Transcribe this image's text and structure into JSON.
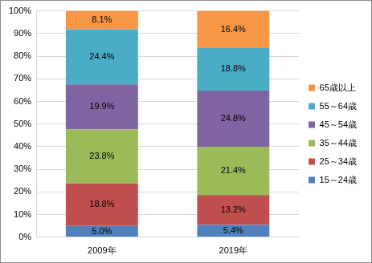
{
  "chart_data": {
    "type": "bar",
    "stacked": true,
    "categories": [
      "2009年",
      "2019年"
    ],
    "series": [
      {
        "name": "15～24歳",
        "color": "#4f81bd",
        "values": [
          5.0,
          5.4
        ],
        "value_labels": [
          "5.0%",
          "5.4%"
        ]
      },
      {
        "name": "25～34歳",
        "color": "#c0504d",
        "values": [
          18.8,
          13.2
        ],
        "value_labels": [
          "18.8%",
          "13.2%"
        ]
      },
      {
        "name": "35～44歳",
        "color": "#9bbb59",
        "values": [
          23.8,
          21.4
        ],
        "value_labels": [
          "23.8%",
          "21.4%"
        ]
      },
      {
        "name": "45～54歳",
        "color": "#8064a2",
        "values": [
          19.9,
          24.8
        ],
        "value_labels": [
          "19.9%",
          "24.8%"
        ]
      },
      {
        "name": "55～64歳",
        "color": "#4bacc6",
        "values": [
          24.4,
          18.8
        ],
        "value_labels": [
          "24.4%",
          "18.8%"
        ]
      },
      {
        "name": "65歳以上",
        "color": "#f79646",
        "values": [
          8.1,
          16.4
        ],
        "value_labels": [
          "8.1%",
          "16.4%"
        ]
      }
    ],
    "ylim": [
      0,
      100
    ],
    "yticks": [
      {
        "value": 0,
        "label": "0%"
      },
      {
        "value": 10,
        "label": "10%"
      },
      {
        "value": 20,
        "label": "20%"
      },
      {
        "value": 30,
        "label": "30%"
      },
      {
        "value": 40,
        "label": "40%"
      },
      {
        "value": 50,
        "label": "50%"
      },
      {
        "value": 60,
        "label": "60%"
      },
      {
        "value": 70,
        "label": "70%"
      },
      {
        "value": 80,
        "label": "80%"
      },
      {
        "value": 90,
        "label": "90%"
      },
      {
        "value": 100,
        "label": "100%"
      }
    ],
    "grid": true,
    "legend": "right",
    "data_labels": true
  }
}
